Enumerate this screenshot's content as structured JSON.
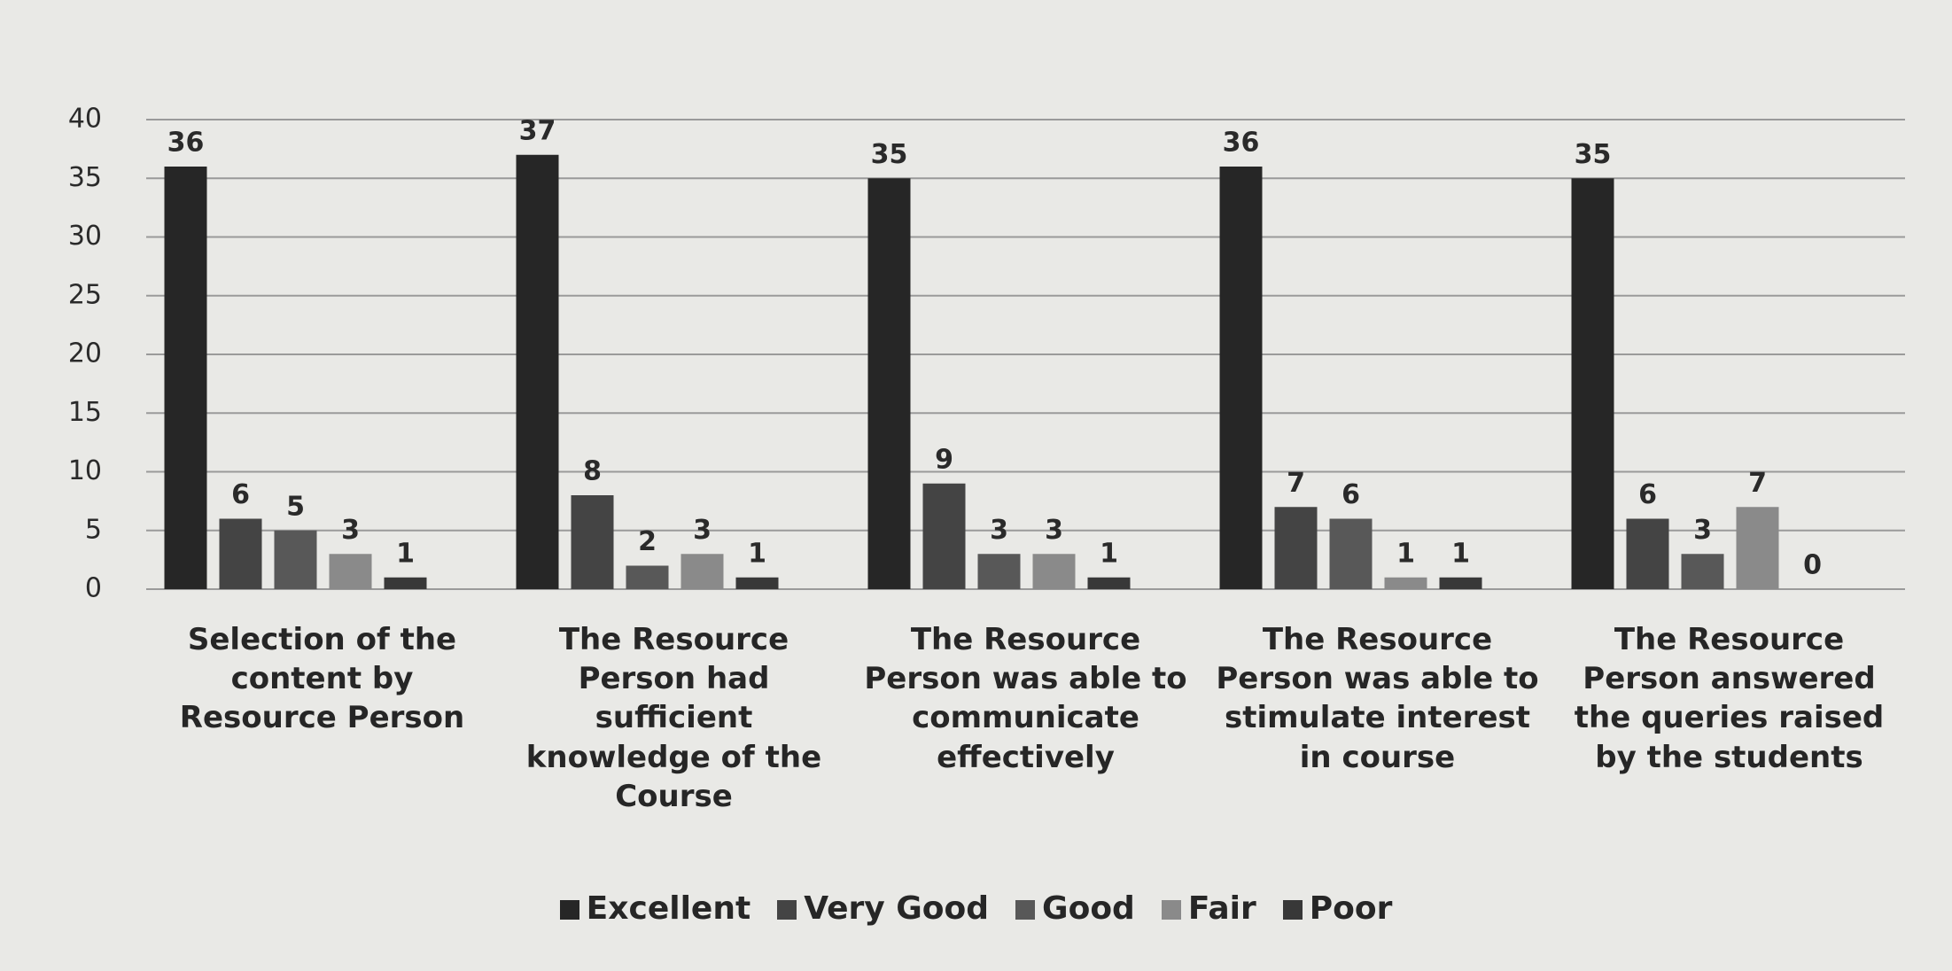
{
  "chart_data": {
    "type": "bar",
    "categories": [
      "Selection of the content by Resource Person",
      "The Resource Person had sufficient knowledge of the Course",
      "The Resource Person was able to communicate effectively",
      "The Resource Person was able to stimulate interest in course",
      "The Resource Person answered the queries raised by the students"
    ],
    "series": [
      {
        "name": "Excellent",
        "color": "#262626",
        "values": [
          36,
          37,
          35,
          36,
          35
        ]
      },
      {
        "name": "Very Good",
        "color": "#444444",
        "values": [
          6,
          8,
          9,
          7,
          6
        ]
      },
      {
        "name": "Good",
        "color": "#585858",
        "values": [
          5,
          2,
          3,
          6,
          3
        ]
      },
      {
        "name": "Fair",
        "color": "#8a8a8a",
        "values": [
          3,
          3,
          3,
          1,
          7
        ]
      },
      {
        "name": "Poor",
        "color": "#383838",
        "values": [
          1,
          1,
          1,
          1,
          0
        ]
      }
    ],
    "ylim": [
      0,
      40
    ],
    "yticks": [
      0,
      5,
      10,
      15,
      20,
      25,
      30,
      35,
      40
    ],
    "grid": true,
    "legend": "bottom"
  }
}
